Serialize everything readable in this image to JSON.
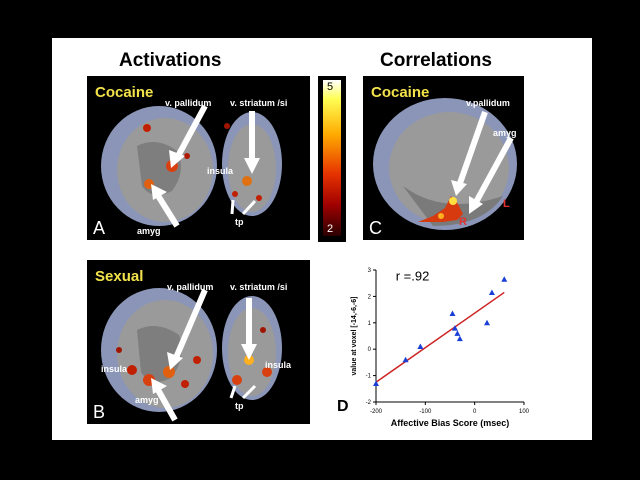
{
  "headings": {
    "activations": "Activations",
    "correlations": "Correlations"
  },
  "panel_a": {
    "label": "Cocaine",
    "letter": "A",
    "v_pallidum": "v. pallidum",
    "v_striatum": "v. striatum /si",
    "insula": "insula",
    "amyg": "amyg",
    "tp": "tp"
  },
  "panel_b": {
    "label": "Sexual",
    "letter": "B",
    "v_pallidum": "v. pallidum",
    "v_striatum": "v. striatum /si",
    "insula_left": "insula",
    "insula_right": "insula",
    "amyg": "amyg",
    "tp": "tp"
  },
  "panel_c": {
    "label": "Cocaine",
    "letter": "C",
    "v_pallidum": "v.pallidum",
    "amyg": "amyg",
    "r": "R",
    "l": "L"
  },
  "colorbar": {
    "max": "5",
    "min": "2"
  },
  "chart_data": {
    "type": "scatter",
    "letter": "D",
    "annotation": "r =.92",
    "xlabel": "Affective Bias Score (msec)",
    "ylabel": "value at voxel [-14,-6,-6]",
    "xlim": [
      -200,
      100
    ],
    "ylim": [
      -2,
      3
    ],
    "xticks": [
      "-200",
      "-100",
      "0",
      "100"
    ],
    "yticks": [
      "-2",
      "-1",
      "0",
      "1",
      "2",
      "3"
    ],
    "points": [
      {
        "x": -200,
        "y": -1.3
      },
      {
        "x": -140,
        "y": -0.4
      },
      {
        "x": -110,
        "y": 0.1
      },
      {
        "x": -45,
        "y": 1.35
      },
      {
        "x": -40,
        "y": 0.8
      },
      {
        "x": -35,
        "y": 0.6
      },
      {
        "x": -30,
        "y": 0.4
      },
      {
        "x": 25,
        "y": 1.0
      },
      {
        "x": 35,
        "y": 2.15
      },
      {
        "x": 60,
        "y": 2.65
      }
    ],
    "fit": {
      "x": [
        -200,
        60
      ],
      "y": [
        -1.25,
        2.15
      ]
    },
    "colors": {
      "points": "#1a3fd6",
      "fit": "#cc2222"
    }
  }
}
